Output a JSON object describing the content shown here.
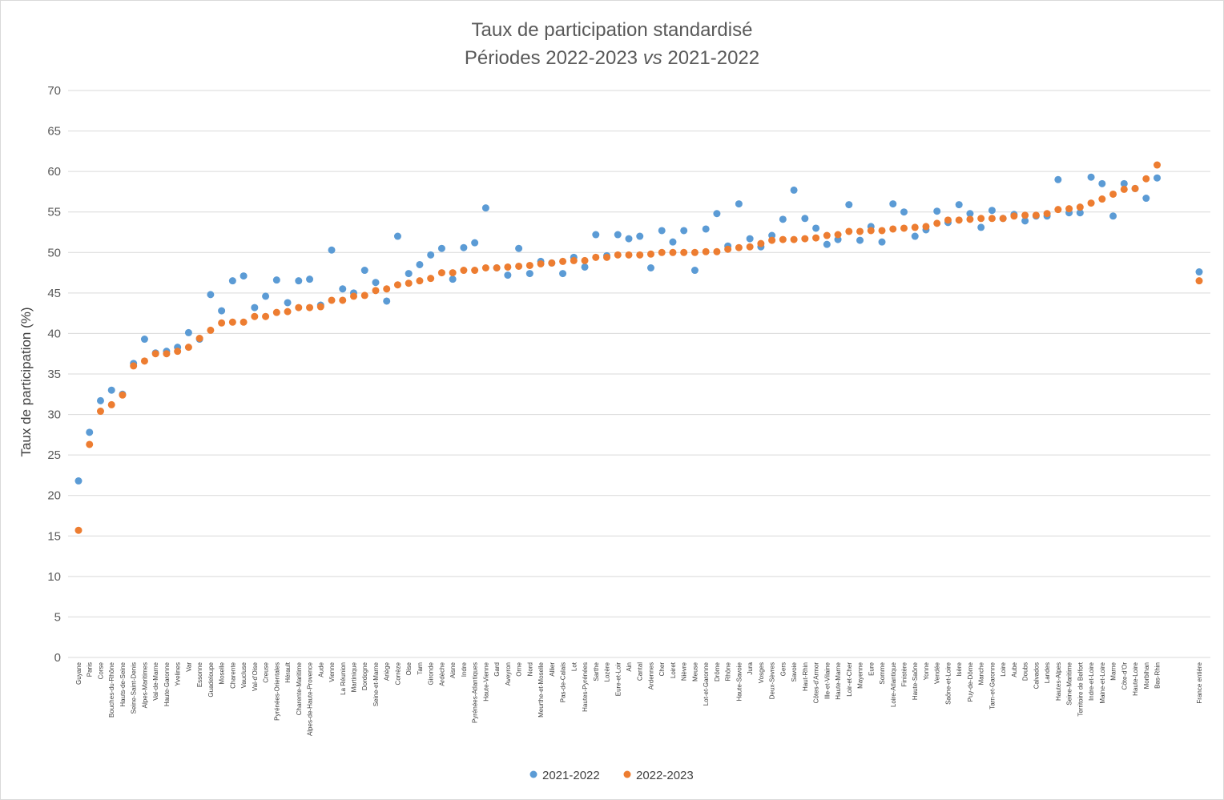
{
  "colors": {
    "s2021": "#5b9bd5",
    "s2022": "#ed7d31"
  },
  "chart_data": {
    "type": "scatter",
    "title": "Taux de participation standardisé",
    "subtitle_prefix": "Périodes 2022-2023 ",
    "subtitle_italic": "vs",
    "subtitle_suffix": " 2021-2022",
    "ylabel": "Taux de participation (%)",
    "ylim": [
      0,
      70
    ],
    "yticks": [
      "0",
      "5",
      "10",
      "15",
      "20",
      "25",
      "30",
      "35",
      "40",
      "45",
      "50",
      "55",
      "60",
      "65",
      "70"
    ],
    "grid": true,
    "legend_position": "bottom",
    "categories": [
      "Guyane",
      "Paris",
      "Corse",
      "Bouches-du-Rhône",
      "Hauts-de-Seine",
      "Seine-Saint-Denis",
      "Alpes-Maritimes",
      "Val-de-Marne",
      "Haute-Garonne",
      "Yvelines",
      "Var",
      "Essonne",
      "Guadeloupe",
      "Moselle",
      "Charente",
      "Vaucluse",
      "Val-d'Oise",
      "Creuse",
      "Pyrénées-Orientales",
      "Hérault",
      "Charente-Maritime",
      "Alpes-de-Haute-Provence",
      "Aude",
      "Vienne",
      "La Réunion",
      "Martinique",
      "Dordogne",
      "Seine-et-Marne",
      "Ariège",
      "Corrèze",
      "Oise",
      "Tarn",
      "Gironde",
      "Ardèche",
      "Aisne",
      "Indre",
      "Pyrénées-Atlantiques",
      "Haute-Vienne",
      "Gard",
      "Aveyron",
      "Orne",
      "Nord",
      "Meurthe-et-Moselle",
      "Allier",
      "Pas-de-Calais",
      "Lot",
      "Hautes-Pyrénées",
      "Sarthe",
      "Lozère",
      "Eure-et-Loir",
      "Ain",
      "Cantal",
      "Ardennes",
      "Cher",
      "Loiret",
      "Nièvre",
      "Meuse",
      "Lot-et-Garonne",
      "Drôme",
      "Rhône",
      "Haute-Savoie",
      "Jura",
      "Vosges",
      "Deux-Sèvres",
      "Gers",
      "Savoie",
      "Haut-Rhin",
      "Côtes-d'Armor",
      "Ille-et-Vilaine",
      "Haute-Marne",
      "Loir-et-Cher",
      "Mayenne",
      "Eure",
      "Somme",
      "Loire-Atlantique",
      "Finistère",
      "Haute-Saône",
      "Yonne",
      "Vendée",
      "Saône-et-Loire",
      "Isère",
      "Puy-de-Dôme",
      "Manche",
      "Tarn-et-Garonne",
      "Loire",
      "Aube",
      "Doubs",
      "Calvados",
      "Landes",
      "Hautes-Alpes",
      "Seine-Maritime",
      "Territoire de Belfort",
      "Indre-et-Loire",
      "Maine-et-Loire",
      "Marne",
      "Côte-d'Or",
      "Haute-Loire",
      "Morbihan",
      "Bas-Rhin",
      "France entière"
    ],
    "series": [
      {
        "name": "2021-2022",
        "values": [
          21.8,
          27.8,
          31.7,
          33.0,
          32.5,
          36.3,
          39.3,
          37.6,
          37.8,
          38.3,
          40.1,
          39.3,
          44.8,
          42.8,
          46.5,
          47.1,
          43.2,
          44.6,
          46.6,
          43.8,
          46.5,
          46.7,
          43.5,
          50.3,
          45.5,
          45.0,
          47.8,
          46.3,
          44.0,
          52.0,
          47.4,
          48.5,
          49.7,
          50.5,
          46.7,
          50.6,
          51.2,
          55.5,
          48.1,
          47.2,
          50.5,
          47.4,
          48.9,
          48.7,
          47.4,
          49.4,
          48.2,
          52.2,
          49.6,
          52.2,
          51.7,
          52.0,
          48.1,
          52.7,
          51.3,
          52.7,
          47.8,
          52.9,
          54.8,
          50.8,
          56.0,
          51.7,
          50.7,
          52.1,
          54.1,
          57.7,
          54.2,
          53.0,
          51.0,
          51.6,
          55.9,
          51.5,
          53.2,
          51.3,
          56.0,
          55.0,
          52.0,
          52.8,
          55.1,
          53.7,
          55.9,
          54.8,
          53.1,
          55.2,
          54.2,
          54.7,
          53.9,
          54.5,
          54.5,
          59.0,
          54.9,
          54.9,
          59.3,
          58.5,
          54.5,
          58.5,
          57.9,
          56.7,
          59.2,
          47.6
        ]
      },
      {
        "name": "2022-2023",
        "values": [
          15.7,
          26.3,
          30.4,
          31.2,
          32.4,
          36.0,
          36.6,
          37.5,
          37.5,
          37.8,
          38.3,
          39.4,
          40.4,
          41.3,
          41.4,
          41.4,
          42.1,
          42.1,
          42.6,
          42.7,
          43.2,
          43.2,
          43.3,
          44.1,
          44.1,
          44.6,
          44.7,
          45.3,
          45.5,
          46.0,
          46.2,
          46.5,
          46.8,
          47.5,
          47.5,
          47.8,
          47.8,
          48.1,
          48.1,
          48.2,
          48.3,
          48.4,
          48.6,
          48.7,
          48.9,
          49.0,
          49.0,
          49.4,
          49.4,
          49.7,
          49.7,
          49.7,
          49.8,
          50.0,
          50.0,
          50.0,
          50.0,
          50.1,
          50.1,
          50.4,
          50.6,
          50.7,
          51.1,
          51.5,
          51.6,
          51.6,
          51.7,
          51.8,
          52.1,
          52.2,
          52.6,
          52.6,
          52.7,
          52.7,
          52.9,
          53.0,
          53.1,
          53.2,
          53.6,
          54.0,
          54.0,
          54.1,
          54.2,
          54.2,
          54.2,
          54.5,
          54.6,
          54.6,
          54.8,
          55.3,
          55.4,
          55.6,
          56.1,
          56.6,
          57.2,
          57.8,
          57.9,
          59.1,
          60.8,
          46.5
        ]
      }
    ]
  }
}
